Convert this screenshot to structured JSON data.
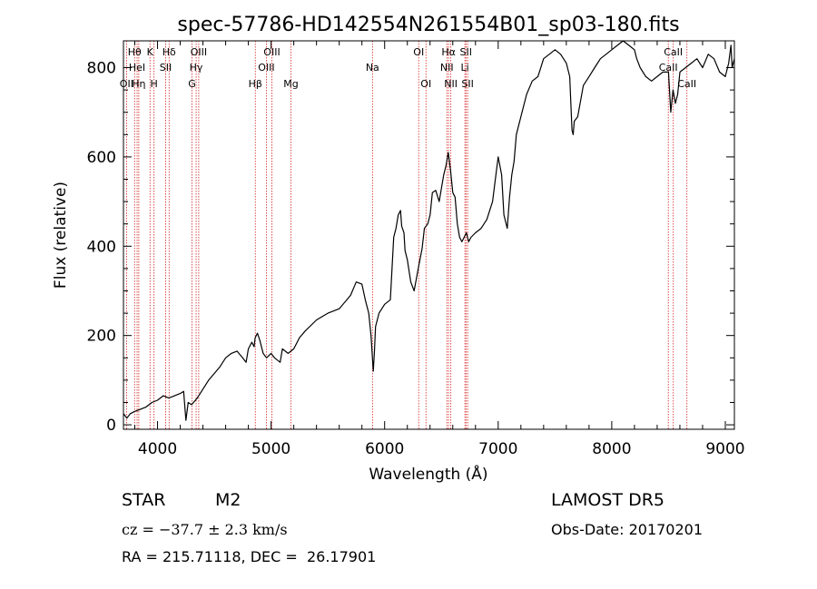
{
  "chart_data": {
    "type": "line",
    "title": "spec-57786-HD142554N261554B01_sp03-180.fits",
    "xlabel": "Wavelength (Å)",
    "ylabel": "Flux (relative)",
    "xlim": [
      3700,
      9080
    ],
    "ylim": [
      -10,
      860
    ],
    "xticks": [
      4000,
      5000,
      6000,
      7000,
      8000,
      9000
    ],
    "yticks": [
      0,
      200,
      400,
      600,
      800
    ],
    "grid": false,
    "line_color": "#000000",
    "marker_color": "#d42020",
    "spectral_lines": [
      {
        "wavelength": 3727,
        "label": "OII",
        "row": 3
      },
      {
        "wavelength": 3798,
        "label": "Hθ",
        "row": 1
      },
      {
        "wavelength": 3820,
        "label": "HeI",
        "row": 2
      },
      {
        "wavelength": 3835,
        "label": "Hη",
        "row": 3
      },
      {
        "wavelength": 3934,
        "label": "K",
        "row": 1
      },
      {
        "wavelength": 3969,
        "label": "H",
        "row": 3
      },
      {
        "wavelength": 4072,
        "label": "SII",
        "row": 2
      },
      {
        "wavelength": 4102,
        "label": "Hδ",
        "row": 1
      },
      {
        "wavelength": 4304,
        "label": "G",
        "row": 3
      },
      {
        "wavelength": 4340,
        "label": "Hγ",
        "row": 2
      },
      {
        "wavelength": 4363,
        "label": "OIII",
        "row": 1
      },
      {
        "wavelength": 4861,
        "label": "Hβ",
        "row": 3
      },
      {
        "wavelength": 4959,
        "label": "OIII",
        "row": 2
      },
      {
        "wavelength": 5007,
        "label": "OIII",
        "row": 1
      },
      {
        "wavelength": 5175,
        "label": "Mg",
        "row": 3
      },
      {
        "wavelength": 5893,
        "label": "Na",
        "row": 2
      },
      {
        "wavelength": 6300,
        "label": "OI",
        "row": 1
      },
      {
        "wavelength": 6364,
        "label": "OI",
        "row": 3
      },
      {
        "wavelength": 6548,
        "label": "NII",
        "row": 2
      },
      {
        "wavelength": 6563,
        "label": "Hα",
        "row": 1
      },
      {
        "wavelength": 6583,
        "label": "NII",
        "row": 3
      },
      {
        "wavelength": 6707,
        "label": "Li",
        "row": 2
      },
      {
        "wavelength": 6716,
        "label": "SII",
        "row": 1
      },
      {
        "wavelength": 6731,
        "label": "SII",
        "row": 3
      },
      {
        "wavelength": 8498,
        "label": "CaII",
        "row": 2
      },
      {
        "wavelength": 8542,
        "label": "CaII",
        "row": 1
      },
      {
        "wavelength": 8662,
        "label": "CaII",
        "row": 3
      }
    ],
    "series": [
      {
        "x": [
          3700,
          3730,
          3760,
          3800,
          3850,
          3900,
          3950,
          4000,
          4050,
          4100,
          4150,
          4200,
          4230,
          4250,
          4270,
          4300,
          4350,
          4400,
          4450,
          4500,
          4550,
          4600,
          4650,
          4700,
          4750,
          4780,
          4800,
          4830,
          4850,
          4860,
          4880,
          4900,
          4930,
          4960,
          5000,
          5030,
          5080,
          5100,
          5150,
          5200,
          5250,
          5300,
          5400,
          5500,
          5600,
          5700,
          5750,
          5800,
          5830,
          5860,
          5880,
          5900,
          5910,
          5920,
          5950,
          6000,
          6050,
          6080,
          6100,
          6120,
          6140,
          6150,
          6170,
          6180,
          6200,
          6230,
          6260,
          6300,
          6330,
          6350,
          6380,
          6400,
          6420,
          6450,
          6480,
          6500,
          6520,
          6540,
          6560,
          6580,
          6600,
          6620,
          6640,
          6660,
          6680,
          6700,
          6720,
          6740,
          6760,
          6800,
          6850,
          6900,
          6950,
          6980,
          7000,
          7030,
          7050,
          7080,
          7100,
          7120,
          7140,
          7160,
          7200,
          7250,
          7300,
          7350,
          7400,
          7450,
          7500,
          7550,
          7600,
          7630,
          7650,
          7660,
          7670,
          7700,
          7750,
          7800,
          7850,
          7900,
          7950,
          8000,
          8050,
          8100,
          8150,
          8200,
          8220,
          8250,
          8300,
          8350,
          8400,
          8450,
          8500,
          8520,
          8540,
          8560,
          8580,
          8600,
          8650,
          8700,
          8750,
          8800,
          8850,
          8900,
          8950,
          9000,
          9030,
          9050,
          9060,
          9070,
          9080
        ],
        "y": [
          25,
          15,
          25,
          30,
          35,
          40,
          50,
          55,
          65,
          60,
          65,
          70,
          75,
          10,
          50,
          45,
          60,
          80,
          100,
          115,
          130,
          150,
          160,
          165,
          150,
          140,
          170,
          185,
          175,
          195,
          205,
          190,
          160,
          150,
          160,
          150,
          140,
          170,
          160,
          170,
          195,
          210,
          235,
          250,
          260,
          290,
          320,
          315,
          280,
          250,
          200,
          120,
          165,
          220,
          250,
          270,
          280,
          420,
          440,
          470,
          480,
          445,
          430,
          390,
          370,
          320,
          300,
          355,
          395,
          440,
          450,
          470,
          520,
          525,
          500,
          530,
          560,
          580,
          610,
          570,
          520,
          510,
          450,
          420,
          410,
          420,
          430,
          410,
          420,
          430,
          440,
          460,
          500,
          560,
          600,
          560,
          470,
          440,
          510,
          560,
          590,
          650,
          690,
          740,
          770,
          780,
          820,
          830,
          840,
          830,
          810,
          780,
          660,
          650,
          680,
          690,
          760,
          780,
          800,
          820,
          830,
          840,
          850,
          860,
          850,
          840,
          820,
          800,
          780,
          770,
          780,
          790,
          790,
          700,
          750,
          720,
          740,
          790,
          800,
          810,
          820,
          800,
          830,
          820,
          790,
          780,
          810,
          850,
          800,
          810,
          820
        ]
      }
    ]
  },
  "info": {
    "object_class": "STAR",
    "subclass": "M2",
    "survey": "LAMOST DR5",
    "cz": "cz = −37.7 ± 2.3 km/s",
    "obs_date": "Obs-Date: 20170201",
    "coords": "RA = 215.71118, DEC =  26.17901"
  }
}
